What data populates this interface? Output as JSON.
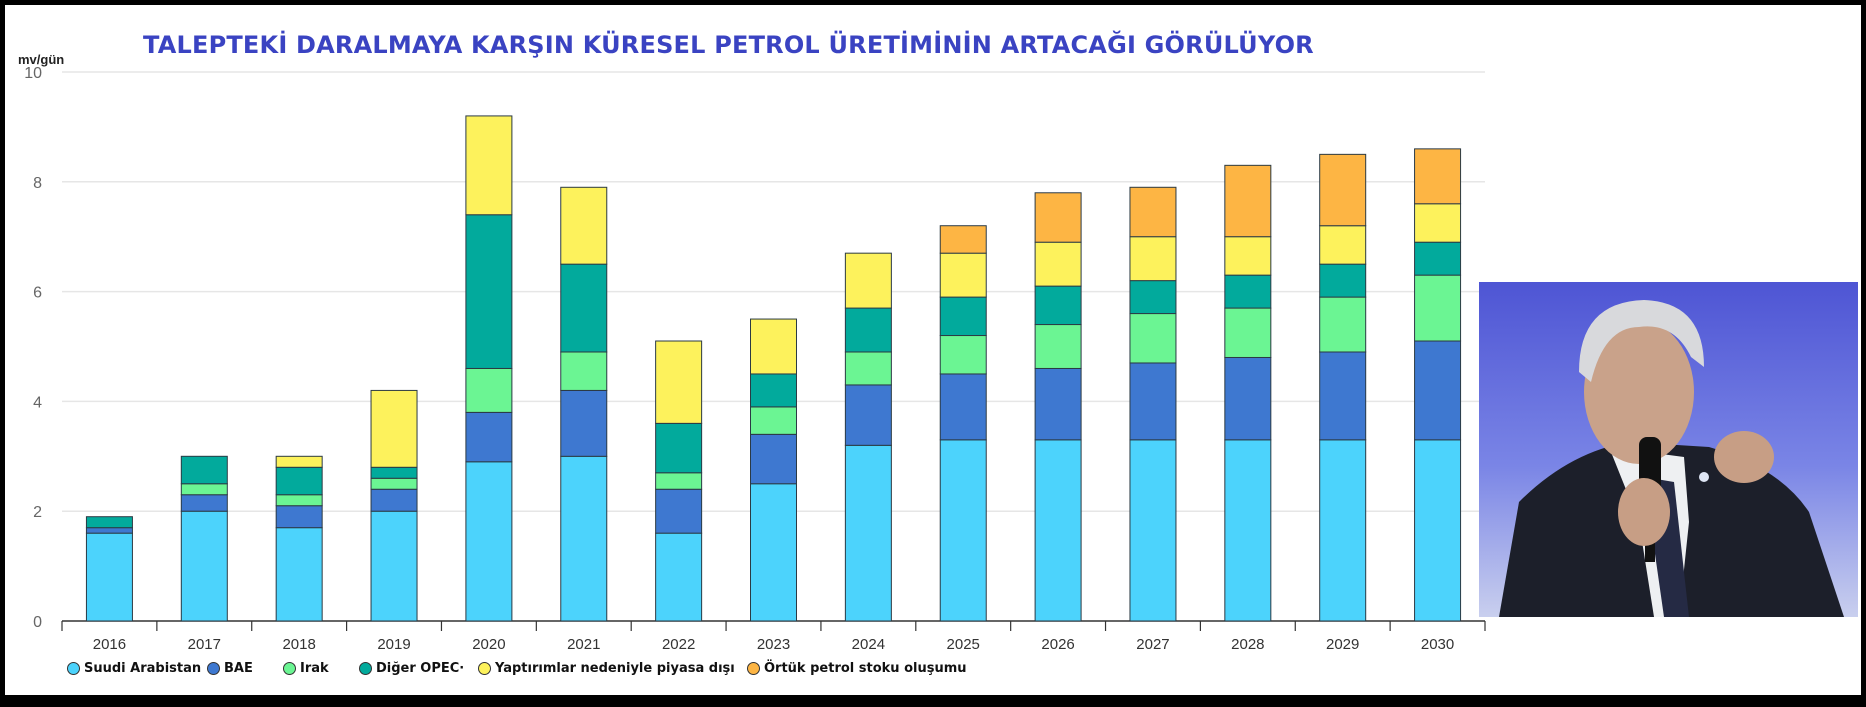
{
  "title": "TALEPTEKİ DARALMAYA KARŞIN KÜRESEL PETROL ÜRETİMİNİN ARTACAĞI GÖRÜLÜYOR",
  "chart_data": {
    "type": "bar",
    "stacked": true,
    "ylabel": "mv/gün",
    "ylim": [
      0,
      10
    ],
    "yticks": [
      "0",
      "2",
      "4",
      "6",
      "8",
      "10"
    ],
    "grid": true,
    "legend_position": "bottom",
    "categories": [
      "2016",
      "2017",
      "2018",
      "2019",
      "2020",
      "2021",
      "2022",
      "2023",
      "2024",
      "2025",
      "2026",
      "2027",
      "2028",
      "2029",
      "2030"
    ],
    "series": [
      {
        "name": "Suudi Arabistan",
        "color": "#4cd3fc",
        "values": [
          1.6,
          2.0,
          1.7,
          2.0,
          2.9,
          3.0,
          1.6,
          2.5,
          3.2,
          3.3,
          3.3,
          3.3,
          3.3,
          3.3,
          3.3
        ]
      },
      {
        "name": "BAE",
        "color": "#3e78d0",
        "values": [
          0.1,
          0.3,
          0.4,
          0.4,
          0.9,
          1.2,
          0.8,
          0.9,
          1.1,
          1.2,
          1.3,
          1.4,
          1.5,
          1.6,
          1.8
        ]
      },
      {
        "name": "Irak",
        "color": "#6bf593",
        "values": [
          0,
          0.2,
          0.2,
          0.2,
          0.8,
          0.7,
          0.3,
          0.5,
          0.6,
          0.7,
          0.8,
          0.9,
          0.9,
          1.0,
          1.2
        ]
      },
      {
        "name": "Diğer OPEC·",
        "color": "#02aa9c",
        "values": [
          0.2,
          0.5,
          0.5,
          0.2,
          2.8,
          1.6,
          0.9,
          0.6,
          0.8,
          0.7,
          0.7,
          0.6,
          0.6,
          0.6,
          0.6
        ]
      },
      {
        "name": "Yaptırımlar nedeniyle piyasa dışı",
        "color": "#fdf25c",
        "values": [
          0,
          0,
          0.2,
          1.4,
          1.8,
          1.4,
          1.5,
          1.0,
          1.0,
          0.8,
          0.8,
          0.8,
          0.7,
          0.7,
          0.7
        ]
      },
      {
        "name": "Örtük petrol stoku oluşumu",
        "color": "#fdb544",
        "values": [
          0,
          0,
          0,
          0,
          0,
          0,
          0,
          0,
          0,
          0.5,
          0.9,
          0.9,
          1.3,
          1.3,
          1.0
        ]
      }
    ]
  }
}
